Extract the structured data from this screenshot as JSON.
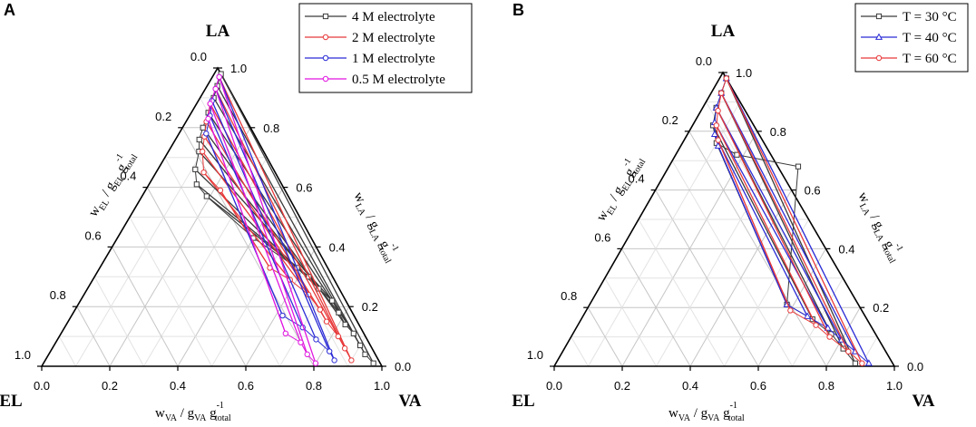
{
  "chart_data": [
    {
      "type": "ternary",
      "panel": "A",
      "vertices": {
        "top": "LA",
        "left": "EL",
        "right": "VA"
      },
      "axis_labels": {
        "bottom": {
          "main": "w",
          "sub": "VA",
          "mid": " / g",
          "sub2": "VA",
          "tail": " g",
          "sup": "-1",
          "sub3": "total"
        },
        "left": {
          "main": "w",
          "sub": "EL",
          "mid": " / g",
          "sub2": "EL",
          "tail": " g",
          "sup": "-1",
          "sub3": "total"
        },
        "right": {
          "main": "w",
          "sub": "LA",
          "mid": " / g",
          "sub2": "LA",
          "tail": " g",
          "sup": "-1",
          "sub3": "total"
        }
      },
      "ticks": [
        "0.0",
        "0.2",
        "0.4",
        "0.6",
        "0.8",
        "1.0"
      ],
      "legend": [
        {
          "name": "4 M electrolyte",
          "color": "#3a3a3a",
          "marker": "square"
        },
        {
          "name": "2 M electrolyte",
          "color": "#e8393a",
          "marker": "circle"
        },
        {
          "name": "1 M electrolyte",
          "color": "#2b2bd6",
          "marker": "circle"
        },
        {
          "name": "0.5 M electrolyte",
          "color": "#e015e0",
          "marker": "circle"
        }
      ],
      "series": [
        {
          "name": "4 M electrolyte",
          "color": "#3a3a3a",
          "tie_lines": [
            [
              [
                0.02,
                0.98
              ],
              [
                0.97,
                0.01
              ]
            ],
            [
              [
                0.03,
                0.94
              ],
              [
                0.93,
                0.04
              ]
            ],
            [
              [
                0.04,
                0.9
              ],
              [
                0.9,
                0.07
              ]
            ],
            [
              [
                0.05,
                0.85
              ],
              [
                0.86,
                0.11
              ]
            ],
            [
              [
                0.06,
                0.8
              ],
              [
                0.82,
                0.14
              ]
            ],
            [
              [
                0.07,
                0.76
              ],
              [
                0.78,
                0.18
              ]
            ],
            [
              [
                0.09,
                0.72
              ],
              [
                0.74,
                0.22
              ]
            ],
            [
              [
                0.11,
                0.66
              ],
              [
                0.68,
                0.26
              ]
            ],
            [
              [
                0.14,
                0.61
              ],
              [
                0.63,
                0.3
              ]
            ],
            [
              [
                0.19,
                0.57
              ],
              [
                0.58,
                0.33
              ]
            ]
          ],
          "binodal": [
            [
              0.02,
              0.98
            ],
            [
              0.03,
              0.94
            ],
            [
              0.04,
              0.9
            ],
            [
              0.05,
              0.85
            ],
            [
              0.06,
              0.8
            ],
            [
              0.07,
              0.76
            ],
            [
              0.09,
              0.72
            ],
            [
              0.11,
              0.66
            ],
            [
              0.14,
              0.61
            ],
            [
              0.19,
              0.57
            ],
            [
              0.4,
              0.43
            ],
            [
              0.58,
              0.33
            ],
            [
              0.63,
              0.3
            ],
            [
              0.68,
              0.26
            ],
            [
              0.74,
              0.22
            ],
            [
              0.78,
              0.18
            ],
            [
              0.82,
              0.14
            ],
            [
              0.86,
              0.11
            ],
            [
              0.9,
              0.07
            ],
            [
              0.93,
              0.04
            ],
            [
              0.97,
              0.01
            ]
          ]
        },
        {
          "name": "2 M electrolyte",
          "color": "#e8393a",
          "tie_lines": [
            [
              [
                0.02,
                0.97
              ],
              [
                0.9,
                0.02
              ]
            ],
            [
              [
                0.03,
                0.93
              ],
              [
                0.86,
                0.06
              ]
            ],
            [
              [
                0.04,
                0.88
              ],
              [
                0.82,
                0.1
              ]
            ],
            [
              [
                0.06,
                0.82
              ],
              [
                0.76,
                0.15
              ]
            ],
            [
              [
                0.08,
                0.77
              ],
              [
                0.72,
                0.19
              ]
            ],
            [
              [
                0.1,
                0.72
              ],
              [
                0.66,
                0.24
              ]
            ],
            [
              [
                0.14,
                0.65
              ],
              [
                0.58,
                0.29
              ]
            ],
            [
              [
                0.22,
                0.59
              ],
              [
                0.5,
                0.33
              ]
            ]
          ],
          "binodal": [
            [
              0.02,
              0.97
            ],
            [
              0.03,
              0.93
            ],
            [
              0.04,
              0.88
            ],
            [
              0.06,
              0.82
            ],
            [
              0.08,
              0.77
            ],
            [
              0.1,
              0.72
            ],
            [
              0.14,
              0.65
            ],
            [
              0.22,
              0.59
            ],
            [
              0.5,
              0.33
            ],
            [
              0.58,
              0.29
            ],
            [
              0.66,
              0.24
            ],
            [
              0.72,
              0.19
            ],
            [
              0.76,
              0.15
            ],
            [
              0.82,
              0.1
            ],
            [
              0.86,
              0.06
            ],
            [
              0.9,
              0.02
            ]
          ]
        },
        {
          "name": "1 M electrolyte",
          "color": "#2b2bd6",
          "tie_lines": [
            [
              [
                0.02,
                0.97
              ],
              [
                0.85,
                0.02
              ]
            ],
            [
              [
                0.03,
                0.93
              ],
              [
                0.82,
                0.05
              ]
            ],
            [
              [
                0.04,
                0.89
              ],
              [
                0.76,
                0.09
              ]
            ],
            [
              [
                0.06,
                0.84
              ],
              [
                0.7,
                0.13
              ]
            ],
            [
              [
                0.08,
                0.78
              ],
              [
                0.62,
                0.17
              ]
            ]
          ],
          "binodal": [
            [
              0.02,
              0.97
            ],
            [
              0.03,
              0.93
            ],
            [
              0.04,
              0.89
            ],
            [
              0.06,
              0.84
            ],
            [
              0.08,
              0.78
            ],
            [
              0.62,
              0.17
            ],
            [
              0.7,
              0.13
            ],
            [
              0.76,
              0.09
            ],
            [
              0.82,
              0.05
            ],
            [
              0.85,
              0.02
            ]
          ]
        },
        {
          "name": "0.5 M electrolyte",
          "color": "#e015e0",
          "tie_lines": [
            [
              [
                0.02,
                0.97
              ],
              [
                0.8,
                0.01
              ]
            ],
            [
              [
                0.03,
                0.93
              ],
              [
                0.76,
                0.04
              ]
            ],
            [
              [
                0.04,
                0.88
              ],
              [
                0.72,
                0.08
              ]
            ],
            [
              [
                0.06,
                0.83
              ],
              [
                0.66,
                0.11
              ]
            ]
          ],
          "binodal": [
            [
              0.02,
              0.97
            ],
            [
              0.03,
              0.93
            ],
            [
              0.04,
              0.88
            ],
            [
              0.06,
              0.83
            ],
            [
              0.66,
              0.11
            ],
            [
              0.72,
              0.08
            ],
            [
              0.76,
              0.04
            ],
            [
              0.8,
              0.01
            ]
          ]
        }
      ]
    },
    {
      "type": "ternary",
      "panel": "B",
      "vertices": {
        "top": "LA",
        "left": "EL",
        "right": "VA"
      },
      "axis_labels": {
        "bottom": {
          "main": "w",
          "sub": "VA",
          "mid": " / g",
          "sub2": "VA",
          "tail": " g",
          "sup": "-1",
          "sub3": "total"
        },
        "left": {
          "main": "w",
          "sub": "EL",
          "mid": " / g",
          "sub2": "EL",
          "tail": " g",
          "sup": "-1",
          "sub3": "total"
        },
        "right": {
          "main": "w",
          "sub": "LA",
          "mid": " / g",
          "sub2": "LA",
          "tail": " g",
          "sup": "-1",
          "sub3": "total"
        }
      },
      "ticks": [
        "0.0",
        "0.2",
        "0.4",
        "0.6",
        "0.8",
        "1.0"
      ],
      "legend": [
        {
          "name": "T = 30 °C",
          "color": "#3a3a3a",
          "marker": "square"
        },
        {
          "name": "T = 40 °C",
          "color": "#2b2bd6",
          "marker": "triangle"
        },
        {
          "name": "T = 60 °C",
          "color": "#e8393a",
          "marker": "circle"
        }
      ],
      "series": [
        {
          "name": "T = 30 °C",
          "color": "#3a3a3a",
          "tie_lines": [
            [
              [
                0.02,
                0.98
              ],
              [
                0.88,
                0.01
              ]
            ],
            [
              [
                0.03,
                0.93
              ],
              [
                0.82,
                0.06
              ]
            ],
            [
              [
                0.04,
                0.88
              ],
              [
                0.76,
                0.11
              ]
            ],
            [
              [
                0.06,
                0.82
              ],
              [
                0.68,
                0.16
              ]
            ],
            [
              [
                0.1,
                0.76
              ],
              [
                0.58,
                0.21
              ]
            ]
          ],
          "binodal": [
            [
              0.02,
              0.98
            ],
            [
              0.03,
              0.93
            ],
            [
              0.04,
              0.88
            ],
            [
              0.06,
              0.82
            ],
            [
              0.1,
              0.76
            ],
            [
              0.18,
              0.72
            ],
            [
              0.38,
              0.68
            ],
            [
              0.58,
              0.21
            ],
            [
              0.68,
              0.16
            ],
            [
              0.76,
              0.11
            ],
            [
              0.82,
              0.06
            ],
            [
              0.88,
              0.01
            ]
          ]
        },
        {
          "name": "T = 40 °C",
          "color": "#2b2bd6",
          "tie_lines": [
            [
              [
                0.02,
                0.98
              ],
              [
                0.92,
                0.01
              ]
            ],
            [
              [
                0.03,
                0.93
              ],
              [
                0.86,
                0.05
              ]
            ],
            [
              [
                0.04,
                0.88
              ],
              [
                0.8,
                0.09
              ]
            ],
            [
              [
                0.06,
                0.83
              ],
              [
                0.74,
                0.13
              ]
            ],
            [
              [
                0.08,
                0.79
              ],
              [
                0.66,
                0.17
              ]
            ],
            [
              [
                0.11,
                0.75
              ],
              [
                0.58,
                0.21
              ]
            ]
          ],
          "binodal": [
            [
              0.02,
              0.98
            ],
            [
              0.03,
              0.93
            ],
            [
              0.04,
              0.88
            ],
            [
              0.06,
              0.83
            ],
            [
              0.08,
              0.79
            ],
            [
              0.11,
              0.75
            ],
            [
              0.58,
              0.21
            ],
            [
              0.66,
              0.17
            ],
            [
              0.74,
              0.13
            ],
            [
              0.8,
              0.09
            ],
            [
              0.86,
              0.05
            ],
            [
              0.92,
              0.01
            ]
          ]
        },
        {
          "name": "T = 60 °C",
          "color": "#e8393a",
          "tie_lines": [
            [
              [
                0.02,
                0.98
              ],
              [
                0.9,
                0.01
              ]
            ],
            [
              [
                0.03,
                0.93
              ],
              [
                0.84,
                0.05
              ]
            ],
            [
              [
                0.05,
                0.87
              ],
              [
                0.76,
                0.1
              ]
            ],
            [
              [
                0.07,
                0.82
              ],
              [
                0.7,
                0.14
              ]
            ],
            [
              [
                0.1,
                0.77
              ],
              [
                0.6,
                0.19
              ]
            ]
          ],
          "binodal": [
            [
              0.02,
              0.98
            ],
            [
              0.03,
              0.93
            ],
            [
              0.05,
              0.87
            ],
            [
              0.07,
              0.82
            ],
            [
              0.1,
              0.77
            ],
            [
              0.6,
              0.19
            ],
            [
              0.7,
              0.14
            ],
            [
              0.76,
              0.1
            ],
            [
              0.84,
              0.05
            ],
            [
              0.9,
              0.01
            ]
          ]
        }
      ]
    }
  ]
}
